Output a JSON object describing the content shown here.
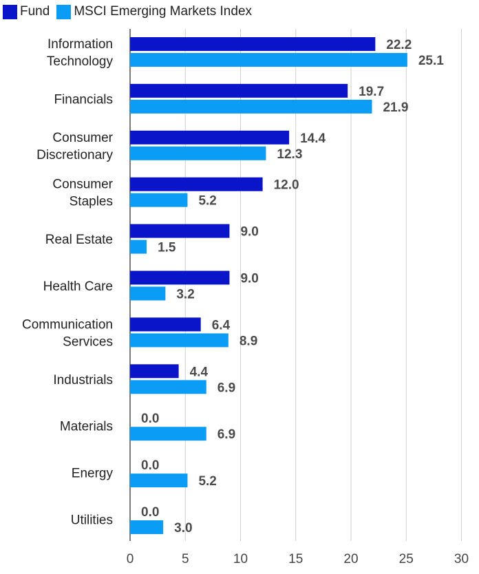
{
  "chart_data": {
    "type": "bar",
    "orientation": "horizontal",
    "categories": [
      "Information Technology",
      "Financials",
      "Consumer Discretionary",
      "Consumer Staples",
      "Real Estate",
      "Health Care",
      "Communication Services",
      "Industrials",
      "Materials",
      "Energy",
      "Utilities"
    ],
    "series": [
      {
        "name": "Fund",
        "color": "#0a14c8",
        "values": [
          22.2,
          19.7,
          14.4,
          12.0,
          9.0,
          9.0,
          6.4,
          4.4,
          0.0,
          0.0,
          0.0
        ]
      },
      {
        "name": "MSCI Emerging Markets Index",
        "color": "#0b9cf5",
        "values": [
          25.1,
          21.9,
          12.3,
          5.2,
          1.5,
          3.2,
          8.9,
          6.9,
          6.9,
          5.2,
          3.0
        ]
      }
    ],
    "xlim": [
      0,
      30
    ],
    "xticks": [
      "0",
      "5",
      "10",
      "15",
      "20",
      "25",
      "30"
    ],
    "grid": "vertical",
    "legend": "top-left",
    "data_labels": true
  }
}
